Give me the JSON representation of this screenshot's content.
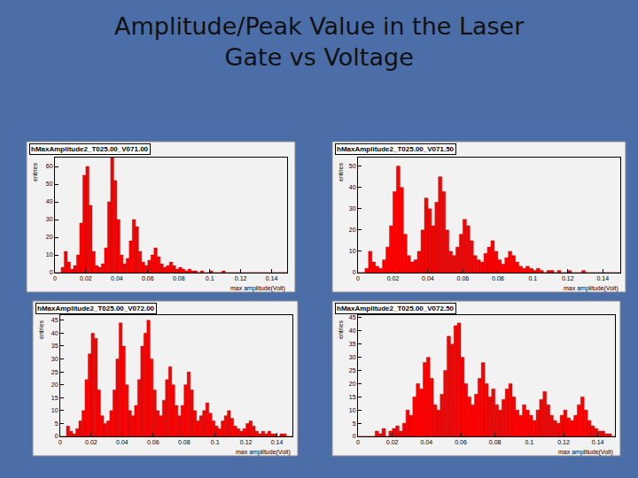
{
  "title": "Amplitude/Peak Value in the Laser\nGate vs Voltage",
  "chart_data": [
    {
      "type": "histogram",
      "title": "hMaxAmplitude2_T025.00_V071.00",
      "x_label": "max amplitude(Volt)",
      "y_label": "entries",
      "color": "#ff0000",
      "bins": [
        0,
        0.002,
        0.004,
        0.006,
        0.008,
        0.01,
        0.012,
        0.014,
        0.016,
        0.018,
        0.02,
        0.022,
        0.024,
        0.026,
        0.028,
        0.03,
        0.032,
        0.034,
        0.036,
        0.038,
        0.04,
        0.042,
        0.044,
        0.046,
        0.048,
        0.05,
        0.052,
        0.054,
        0.056,
        0.058,
        0.06,
        0.062,
        0.064,
        0.066,
        0.068,
        0.07,
        0.072,
        0.074,
        0.076,
        0.078,
        0.08,
        0.082,
        0.084,
        0.086,
        0.088,
        0.09,
        0.092,
        0.094,
        0.096,
        0.098,
        0.1,
        0.102,
        0.104,
        0.106,
        0.108,
        0.11,
        0.112,
        0.114,
        0.116,
        0.118,
        0.12,
        0.122,
        0.124,
        0.126,
        0.128,
        0.13,
        0.132,
        0.134,
        0.136,
        0.138,
        0.14,
        0.142,
        0.144,
        0.146,
        0.148,
        0.15
      ],
      "counts": [
        0,
        0,
        3,
        12,
        6,
        2,
        4,
        10,
        28,
        55,
        60,
        38,
        12,
        4,
        3,
        5,
        14,
        40,
        65,
        52,
        30,
        10,
        5,
        8,
        18,
        30,
        26,
        12,
        6,
        4,
        7,
        10,
        14,
        9,
        5,
        3,
        4,
        6,
        4,
        2,
        3,
        2,
        1,
        2,
        1,
        1,
        0,
        1,
        0,
        0,
        1,
        0,
        0,
        0,
        1,
        0,
        0,
        0,
        0,
        0,
        0,
        0,
        0,
        0,
        0,
        0,
        0,
        0,
        0,
        0,
        0,
        0,
        0,
        0,
        0
      ],
      "xlim": [
        0,
        0.15
      ],
      "xticks": [
        0,
        0.02,
        0.04,
        0.06,
        0.08,
        0.1,
        0.12,
        0.14
      ],
      "ylim": [
        0,
        65
      ],
      "yticks": [
        0,
        10,
        20,
        30,
        40,
        50,
        60
      ],
      "grid": false
    },
    {
      "type": "histogram",
      "title": "hMaxAmplitude2_T025.00_V071.50",
      "x_label": "max amplitude(Volt)",
      "y_label": "entries",
      "color": "#ff0000",
      "bins": [
        0,
        0.002,
        0.004,
        0.006,
        0.008,
        0.01,
        0.012,
        0.014,
        0.016,
        0.018,
        0.02,
        0.022,
        0.024,
        0.026,
        0.028,
        0.03,
        0.032,
        0.034,
        0.036,
        0.038,
        0.04,
        0.042,
        0.044,
        0.046,
        0.048,
        0.05,
        0.052,
        0.054,
        0.056,
        0.058,
        0.06,
        0.062,
        0.064,
        0.066,
        0.068,
        0.07,
        0.072,
        0.074,
        0.076,
        0.078,
        0.08,
        0.082,
        0.084,
        0.086,
        0.088,
        0.09,
        0.092,
        0.094,
        0.096,
        0.098,
        0.1,
        0.102,
        0.104,
        0.106,
        0.108,
        0.11,
        0.112,
        0.114,
        0.116,
        0.118,
        0.12,
        0.122,
        0.124,
        0.126,
        0.128,
        0.13,
        0.132,
        0.134,
        0.136,
        0.138,
        0.14,
        0.142,
        0.144,
        0.146,
        0.148,
        0.15
      ],
      "counts": [
        0,
        0,
        2,
        10,
        5,
        3,
        2,
        6,
        12,
        22,
        38,
        50,
        40,
        18,
        8,
        5,
        6,
        10,
        20,
        35,
        30,
        22,
        33,
        45,
        38,
        20,
        10,
        8,
        12,
        18,
        25,
        22,
        15,
        8,
        6,
        5,
        9,
        12,
        15,
        10,
        6,
        4,
        7,
        10,
        8,
        5,
        3,
        2,
        3,
        2,
        1,
        2,
        1,
        0,
        1,
        1,
        0,
        1,
        0,
        0,
        1,
        0,
        0,
        0,
        1,
        0,
        0,
        0,
        0,
        0,
        0,
        0,
        0,
        0,
        0
      ],
      "xlim": [
        0,
        0.15
      ],
      "xticks": [
        0,
        0.02,
        0.04,
        0.06,
        0.08,
        0.1,
        0.12,
        0.14
      ],
      "ylim": [
        0,
        54
      ],
      "yticks": [
        0,
        10,
        20,
        30,
        40,
        50
      ],
      "grid": false
    },
    {
      "type": "histogram",
      "title": "hMaxAmplitude2_T025.00_V072.00",
      "x_label": "max amplitude(Volt)",
      "y_label": "entries",
      "color": "#ff0000",
      "bins": [
        0,
        0.002,
        0.004,
        0.006,
        0.008,
        0.01,
        0.012,
        0.014,
        0.016,
        0.018,
        0.02,
        0.022,
        0.024,
        0.026,
        0.028,
        0.03,
        0.032,
        0.034,
        0.036,
        0.038,
        0.04,
        0.042,
        0.044,
        0.046,
        0.048,
        0.05,
        0.052,
        0.054,
        0.056,
        0.058,
        0.06,
        0.062,
        0.064,
        0.066,
        0.068,
        0.07,
        0.072,
        0.074,
        0.076,
        0.078,
        0.08,
        0.082,
        0.084,
        0.086,
        0.088,
        0.09,
        0.092,
        0.094,
        0.096,
        0.098,
        0.1,
        0.102,
        0.104,
        0.106,
        0.108,
        0.11,
        0.112,
        0.114,
        0.116,
        0.118,
        0.12,
        0.122,
        0.124,
        0.126,
        0.128,
        0.13,
        0.132,
        0.134,
        0.136,
        0.138,
        0.14,
        0.142,
        0.144,
        0.146,
        0.148,
        0.15
      ],
      "counts": [
        0,
        0,
        4,
        2,
        1,
        3,
        6,
        10,
        22,
        32,
        40,
        38,
        18,
        8,
        5,
        6,
        10,
        18,
        30,
        44,
        35,
        20,
        10,
        8,
        12,
        22,
        35,
        40,
        45,
        30,
        18,
        10,
        8,
        14,
        22,
        27,
        20,
        12,
        8,
        12,
        20,
        25,
        18,
        10,
        6,
        8,
        10,
        13,
        9,
        6,
        4,
        3,
        6,
        8,
        10,
        7,
        4,
        3,
        2,
        3,
        5,
        6,
        4,
        2,
        1,
        2,
        1,
        2,
        1,
        1,
        0,
        1,
        1,
        0,
        0
      ],
      "xlim": [
        0,
        0.15
      ],
      "xticks": [
        0,
        0.02,
        0.04,
        0.06,
        0.08,
        0.1,
        0.12,
        0.14
      ],
      "ylim": [
        0,
        47
      ],
      "yticks": [
        0,
        5,
        10,
        15,
        20,
        25,
        30,
        35,
        40,
        45
      ],
      "grid": false
    },
    {
      "type": "histogram",
      "title": "hMaxAmplitude2_T025.00_V072.50",
      "x_label": "max amplitude(Volt)",
      "y_label": "entries",
      "color": "#ff0000",
      "bins": [
        0,
        0.002,
        0.004,
        0.006,
        0.008,
        0.01,
        0.012,
        0.014,
        0.016,
        0.018,
        0.02,
        0.022,
        0.024,
        0.026,
        0.028,
        0.03,
        0.032,
        0.034,
        0.036,
        0.038,
        0.04,
        0.042,
        0.044,
        0.046,
        0.048,
        0.05,
        0.052,
        0.054,
        0.056,
        0.058,
        0.06,
        0.062,
        0.064,
        0.066,
        0.068,
        0.07,
        0.072,
        0.074,
        0.076,
        0.078,
        0.08,
        0.082,
        0.084,
        0.086,
        0.088,
        0.09,
        0.092,
        0.094,
        0.096,
        0.098,
        0.1,
        0.102,
        0.104,
        0.106,
        0.108,
        0.11,
        0.112,
        0.114,
        0.116,
        0.118,
        0.12,
        0.122,
        0.124,
        0.126,
        0.128,
        0.13,
        0.132,
        0.134,
        0.136,
        0.138,
        0.14,
        0.142,
        0.144,
        0.146,
        0.148,
        0.15
      ],
      "counts": [
        0,
        0,
        0,
        0,
        0,
        2,
        1,
        3,
        0,
        2,
        3,
        4,
        2,
        5,
        10,
        8,
        15,
        20,
        18,
        28,
        30,
        22,
        12,
        10,
        16,
        25,
        38,
        35,
        42,
        43,
        30,
        20,
        15,
        12,
        16,
        22,
        28,
        20,
        15,
        18,
        12,
        10,
        14,
        18,
        20,
        15,
        10,
        8,
        12,
        10,
        8,
        6,
        10,
        14,
        17,
        12,
        8,
        6,
        5,
        8,
        10,
        7,
        6,
        8,
        12,
        15,
        10,
        6,
        4,
        3,
        2,
        2,
        1,
        1,
        0
      ],
      "xlim": [
        0,
        0.15
      ],
      "xticks": [
        0,
        0.02,
        0.04,
        0.06,
        0.08,
        0.1,
        0.12,
        0.14
      ],
      "ylim": [
        0,
        46
      ],
      "yticks": [
        0,
        5,
        10,
        15,
        20,
        25,
        30,
        35,
        40,
        45
      ],
      "grid": false
    }
  ]
}
